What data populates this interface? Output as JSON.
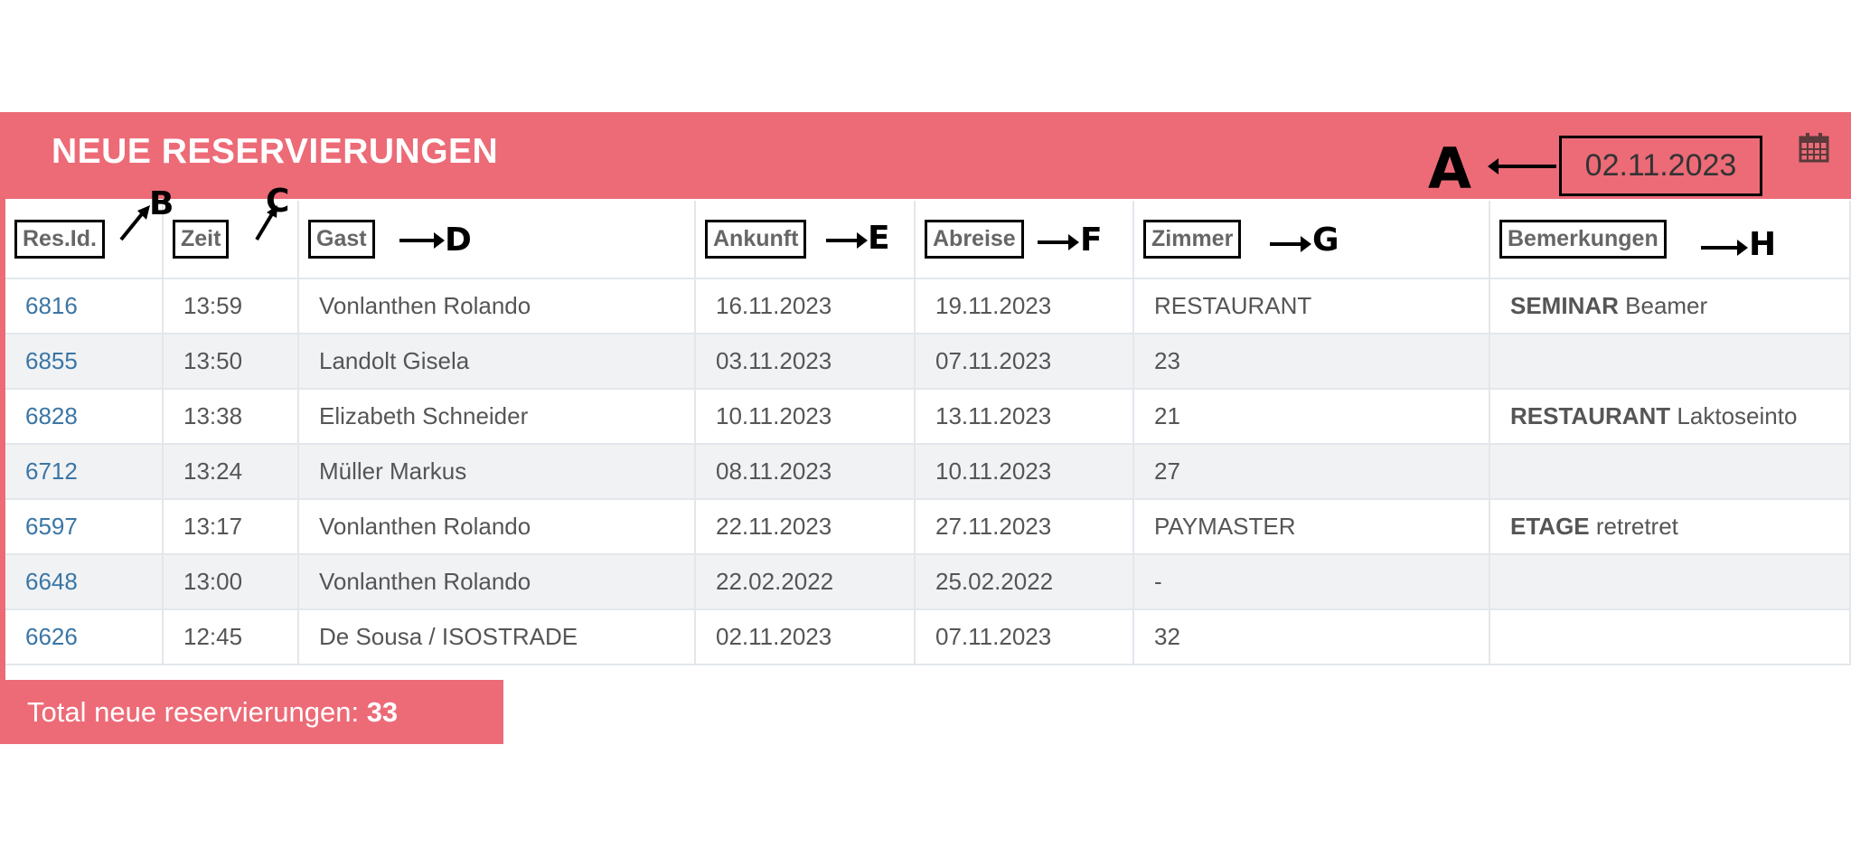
{
  "header": {
    "title": "NEUE RESERVIERUNGEN",
    "date": "02.11.2023",
    "calendar_icon": "calendar-icon",
    "color": "#ec6b77"
  },
  "columns": [
    "Res.Id.",
    "Zeit",
    "Gast",
    "Ankunft",
    "Abreise",
    "Zimmer",
    "Bemerkungen"
  ],
  "rows": [
    {
      "id": "6816",
      "zeit": "13:59",
      "gast": "Vonlanthen Rolando",
      "ankunft": "16.11.2023",
      "abreise": "19.11.2023",
      "zimmer": "RESTAURANT",
      "bem_bold": "SEMINAR",
      "bem": "Beamer"
    },
    {
      "id": "6855",
      "zeit": "13:50",
      "gast": "Landolt Gisela",
      "ankunft": "03.11.2023",
      "abreise": "07.11.2023",
      "zimmer": "23",
      "bem_bold": "",
      "bem": ""
    },
    {
      "id": "6828",
      "zeit": "13:38",
      "gast": "Elizabeth Schneider",
      "ankunft": "10.11.2023",
      "abreise": "13.11.2023",
      "zimmer": "21",
      "bem_bold": "RESTAURANT",
      "bem": "Laktoseinto"
    },
    {
      "id": "6712",
      "zeit": "13:24",
      "gast": "Müller Markus",
      "ankunft": "08.11.2023",
      "abreise": "10.11.2023",
      "zimmer": "27",
      "bem_bold": "",
      "bem": ""
    },
    {
      "id": "6597",
      "zeit": "13:17",
      "gast": "Vonlanthen Rolando",
      "ankunft": "22.11.2023",
      "abreise": "27.11.2023",
      "zimmer": "PAYMASTER",
      "bem_bold": "ETAGE",
      "bem": "retretret"
    },
    {
      "id": "6648",
      "zeit": "13:00",
      "gast": "Vonlanthen Rolando",
      "ankunft": "22.02.2022",
      "abreise": "25.02.2022",
      "zimmer": "-",
      "bem_bold": "",
      "bem": ""
    },
    {
      "id": "6626",
      "zeit": "12:45",
      "gast": "De Sousa / ISOSTRADE",
      "ankunft": "02.11.2023",
      "abreise": "07.11.2023",
      "zimmer": "32",
      "bem_bold": "",
      "bem": ""
    }
  ],
  "footer": {
    "label": "Total neue reservierungen: ",
    "count": "33"
  },
  "annotations": [
    "A",
    "B",
    "C",
    "D",
    "E",
    "F",
    "G",
    "H"
  ]
}
